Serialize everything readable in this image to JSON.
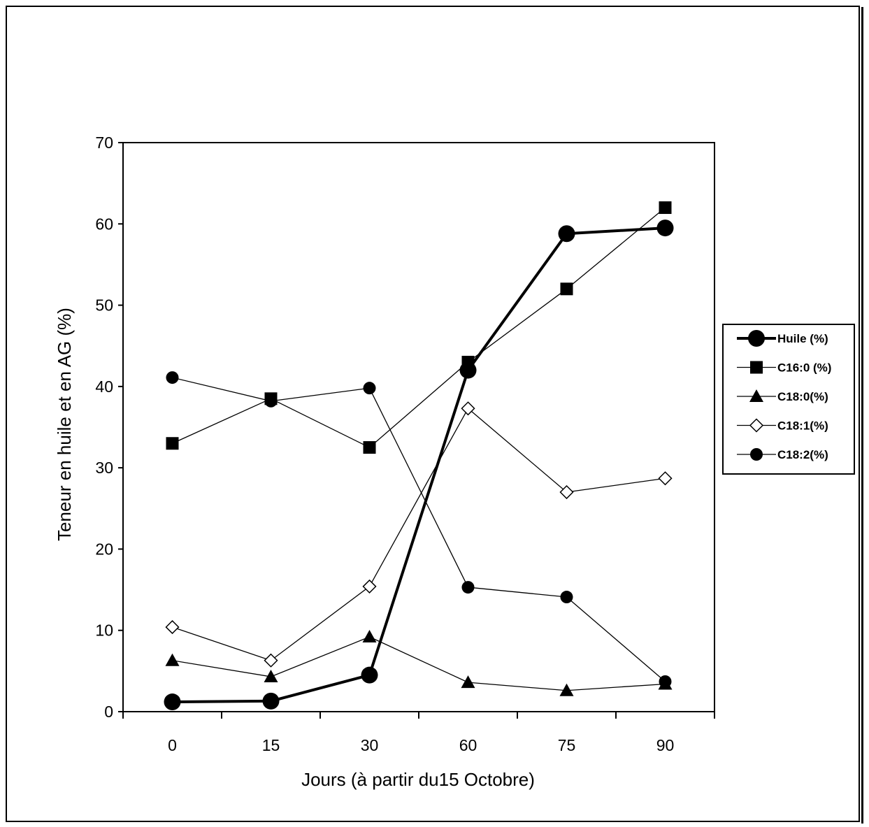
{
  "chart_data": {
    "type": "line",
    "title": "",
    "xlabel": "Jours (à partir du15 Octobre)",
    "ylabel": "Teneur en huile et en AG (%)",
    "categories": [
      "0",
      "15",
      "30",
      "60",
      "75",
      "90"
    ],
    "ylim": [
      0,
      70
    ],
    "yticks": [
      0,
      10,
      20,
      30,
      40,
      50,
      60,
      70
    ],
    "grid": false,
    "legend_position": "right",
    "series": [
      {
        "name": "Huile (%)",
        "marker": "circle-large",
        "line": "bold",
        "color": "#000000",
        "values": [
          1.2,
          1.3,
          4.5,
          42,
          58.8,
          59.5
        ]
      },
      {
        "name": "C16:0 (%)",
        "marker": "square",
        "line": "thin",
        "color": "#000000",
        "values": [
          33,
          38.5,
          32.5,
          43,
          52,
          62
        ]
      },
      {
        "name": "C18:0(%)",
        "marker": "triangle",
        "line": "thin",
        "color": "#000000",
        "values": [
          6.3,
          4.3,
          9.2,
          3.6,
          2.6,
          3.4
        ]
      },
      {
        "name": "C18:1(%)",
        "marker": "diamond-open",
        "line": "thin",
        "color": "#000000",
        "values": [
          10.4,
          6.3,
          15.4,
          37.3,
          27,
          28.7
        ]
      },
      {
        "name": "C18:2(%)",
        "marker": "circle",
        "line": "thin",
        "color": "#000000",
        "values": [
          41.1,
          38.2,
          39.8,
          15.3,
          14.1,
          3.7
        ]
      }
    ]
  }
}
